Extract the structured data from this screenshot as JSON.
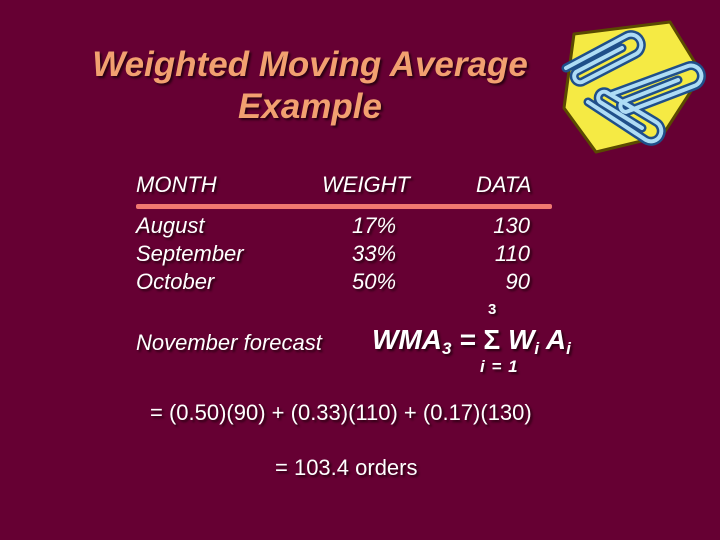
{
  "slide": {
    "title_line1": "Weighted Moving Average",
    "title_line2": "Example"
  },
  "table": {
    "headers": [
      "MONTH",
      "WEIGHT",
      "DATA"
    ],
    "months": [
      "August",
      "September",
      "October"
    ],
    "weights": [
      "17%",
      "33%",
      "50%"
    ],
    "data": [
      "130",
      "110",
      "90"
    ]
  },
  "forecast": {
    "label": "November forecast",
    "formula_lhs": "WMA",
    "formula_lhs_sub": "3",
    "equals": " = ",
    "sigma": "Σ",
    "sum_upper": "3",
    "sum_lower": "i = 1",
    "term_w": " W",
    "term_w_sub": "i",
    "term_a": " A",
    "term_a_sub": "i"
  },
  "calculation": {
    "line1": "= (0.50)(90) + (0.33)(110) + (0.17)(130)",
    "line2": "= 103.4 orders"
  },
  "colors": {
    "background": "#660033",
    "title": "#f2a070",
    "rule": "#f07870"
  },
  "icons": [
    "paperclips-clipart-icon"
  ]
}
